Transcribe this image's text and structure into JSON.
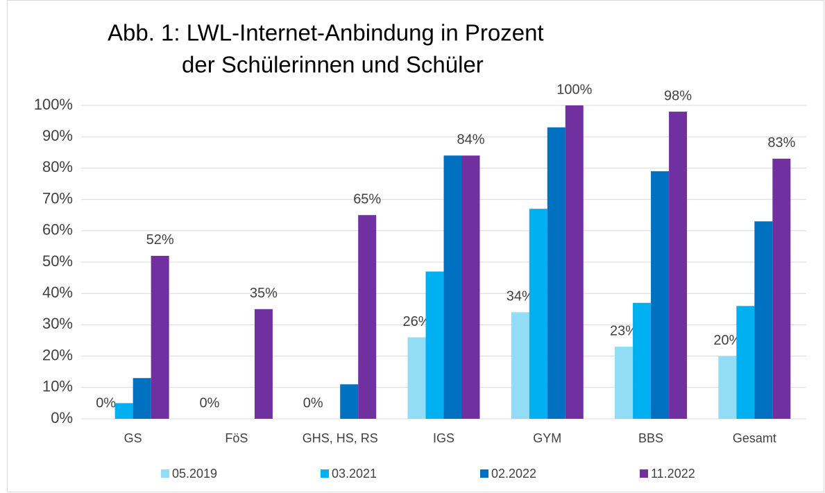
{
  "chart_data": {
    "type": "bar",
    "title": [
      "Abb. 1: LWL-Internet-Anbindung in Prozent",
      "der Schülerinnen und Schüler"
    ],
    "categories": [
      "GS",
      "FöS",
      "GHS, HS, RS",
      "IGS",
      "GYM",
      "BBS",
      "Gesamt"
    ],
    "series": [
      {
        "name": "05.2019",
        "color": "#92dcf5",
        "values": [
          0,
          0,
          0,
          26,
          34,
          23,
          20
        ],
        "value_labels": [
          "0%",
          "0%",
          "0%",
          "26%",
          "34%",
          "23%",
          "20%"
        ]
      },
      {
        "name": "03.2021",
        "color": "#00b0f0",
        "values": [
          5,
          0,
          0,
          47,
          67,
          37,
          36
        ]
      },
      {
        "name": "02.2022",
        "color": "#0070c0",
        "values": [
          13,
          0,
          11,
          84,
          93,
          79,
          63
        ]
      },
      {
        "name": "11.2022",
        "color": "#7030a0",
        "values": [
          52,
          35,
          65,
          84,
          100,
          98,
          83
        ],
        "value_labels": [
          "52%",
          "35%",
          "65%",
          "84%",
          "100%",
          "98%",
          "83%"
        ]
      }
    ],
    "ylim": [
      0,
      100
    ],
    "yticks": [
      {
        "value": 0,
        "label": "0%"
      },
      {
        "value": 10,
        "label": "10%"
      },
      {
        "value": 20,
        "label": "20%"
      },
      {
        "value": 30,
        "label": "30%"
      },
      {
        "value": 40,
        "label": "40%"
      },
      {
        "value": 50,
        "label": "50%"
      },
      {
        "value": 60,
        "label": "60%"
      },
      {
        "value": 70,
        "label": "70%"
      },
      {
        "value": 80,
        "label": "80%"
      },
      {
        "value": 90,
        "label": "90%"
      },
      {
        "value": 100,
        "label": "100%"
      }
    ],
    "grid": true,
    "legend": "bottom"
  }
}
